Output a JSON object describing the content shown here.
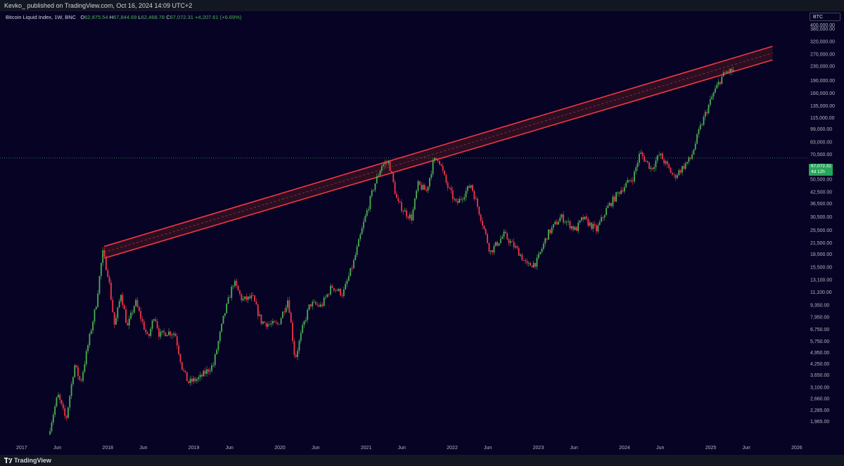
{
  "header": {
    "publisher_line": "Kevko_ published on TradingView.com, Oct 16, 2024 14:09 UTC+2"
  },
  "legend": {
    "name": "Bitcoin Liquid Index, 1W, BNC",
    "o_label": "O",
    "o": "62,875.54",
    "h_label": "H",
    "h": "67,844.69",
    "l_label": "L",
    "l": "62,468.78",
    "c_label": "C",
    "c": "67,072.31",
    "change": "+4,207.61 (+6.69%)"
  },
  "symbol": "BTC",
  "last_price": {
    "value": "67,072.31",
    "countdown": "4d 12h"
  },
  "footer": {
    "brand": "TradingView"
  },
  "colors": {
    "background": "#060325",
    "up": "#4caf50",
    "down": "#f23645",
    "channel": "#f23645",
    "channel_fill": "#3a1120",
    "axis_text": "#b2b5be"
  },
  "chart_data": {
    "type": "candlestick",
    "title": "Bitcoin Liquid Index, 1W, BNC",
    "scale": "log",
    "x_range": [
      "2016-10-01",
      "2026-02-15"
    ],
    "y_range": [
      1500,
      480000
    ],
    "y_ticks": [
      "400,000.00",
      "380,000.00",
      "320,000.00",
      "270,000.00",
      "230,000.00",
      "190,000.00",
      "160,000.00",
      "135,000.00",
      "115,000.00",
      "99,000.00",
      "83,000.00",
      "70,500.00",
      "50,500.00",
      "42,500.00",
      "36,500.00",
      "30,500.00",
      "25,500.00",
      "21,500.00",
      "18,500.00",
      "15,500.00",
      "13,100.00",
      "11,100.00",
      "9,350.00",
      "7,950.00",
      "6,750.00",
      "5,750.00",
      "4,950.00",
      "4,250.00",
      "3,650.00",
      "3,100.00",
      "2,660.00",
      "2,285.00",
      "1,965.00"
    ],
    "x_ticks": [
      "2017",
      "Jun",
      "2018",
      "Jun",
      "2019",
      "Jun",
      "2020",
      "Jun",
      "2021",
      "Jun",
      "2022",
      "Jun",
      "2023",
      "Jun",
      "2024",
      "Jun",
      "2025",
      "Jun",
      "2026"
    ],
    "price_path": [
      [
        "2017-05-01",
        1650
      ],
      [
        "2017-06-10",
        2800
      ],
      [
        "2017-07-15",
        2000
      ],
      [
        "2017-08-20",
        4200
      ],
      [
        "2017-09-15",
        3300
      ],
      [
        "2017-10-20",
        5800
      ],
      [
        "2017-11-20",
        9500
      ],
      [
        "2017-12-17",
        19000
      ],
      [
        "2018-01-10",
        14000
      ],
      [
        "2018-02-06",
        7000
      ],
      [
        "2018-03-05",
        11000
      ],
      [
        "2018-04-01",
        6900
      ],
      [
        "2018-05-05",
        9800
      ],
      [
        "2018-06-28",
        5900
      ],
      [
        "2018-07-25",
        8300
      ],
      [
        "2018-08-15",
        6200
      ],
      [
        "2018-09-15",
        6500
      ],
      [
        "2018-10-20",
        6400
      ],
      [
        "2018-11-20",
        4000
      ],
      [
        "2018-12-15",
        3300
      ],
      [
        "2019-02-01",
        3500
      ],
      [
        "2019-04-01",
        4200
      ],
      [
        "2019-05-15",
        8000
      ],
      [
        "2019-06-26",
        12800
      ],
      [
        "2019-08-01",
        10000
      ],
      [
        "2019-09-15",
        10300
      ],
      [
        "2019-10-20",
        7500
      ],
      [
        "2019-11-25",
        7200
      ],
      [
        "2020-01-01",
        7200
      ],
      [
        "2020-02-12",
        10200
      ],
      [
        "2020-03-12",
        4500
      ],
      [
        "2020-04-15",
        7000
      ],
      [
        "2020-05-15",
        9500
      ],
      [
        "2020-07-01",
        9200
      ],
      [
        "2020-08-15",
        12000
      ],
      [
        "2020-10-01",
        10800
      ],
      [
        "2020-11-15",
        16500
      ],
      [
        "2020-12-31",
        29000
      ],
      [
        "2021-02-10",
        46000
      ],
      [
        "2021-03-15",
        61000
      ],
      [
        "2021-04-14",
        63500
      ],
      [
        "2021-05-20",
        37000
      ],
      [
        "2021-06-25",
        32000
      ],
      [
        "2021-07-20",
        30000
      ],
      [
        "2021-08-15",
        47000
      ],
      [
        "2021-09-20",
        43000
      ],
      [
        "2021-10-20",
        64000
      ],
      [
        "2021-11-10",
        67500
      ],
      [
        "2021-12-15",
        47000
      ],
      [
        "2022-01-25",
        36000
      ],
      [
        "2022-03-28",
        47000
      ],
      [
        "2022-05-10",
        30000
      ],
      [
        "2022-06-18",
        19000
      ],
      [
        "2022-08-15",
        24000
      ],
      [
        "2022-10-15",
        19200
      ],
      [
        "2022-11-21",
        15800
      ],
      [
        "2022-12-31",
        16500
      ],
      [
        "2023-02-15",
        24000
      ],
      [
        "2023-04-14",
        30500
      ],
      [
        "2023-06-15",
        25500
      ],
      [
        "2023-07-15",
        30000
      ],
      [
        "2023-09-11",
        25500
      ],
      [
        "2023-10-25",
        34000
      ],
      [
        "2023-12-15",
        42500
      ],
      [
        "2024-02-15",
        52000
      ],
      [
        "2024-03-14",
        72000
      ],
      [
        "2024-05-01",
        58000
      ],
      [
        "2024-06-05",
        70500
      ],
      [
        "2024-08-05",
        52000
      ],
      [
        "2024-09-15",
        60000
      ],
      [
        "2024-10-16",
        67000
      ],
      [
        "2024-11-20",
        97000
      ],
      [
        "2024-12-20",
        125000
      ],
      [
        "2025-01-20",
        160000
      ],
      [
        "2025-02-25",
        200000
      ],
      [
        "2025-03-20",
        215000
      ],
      [
        "2025-04-10",
        215000
      ]
    ],
    "channel": {
      "upper_start": [
        "2017-12-17",
        20500
      ],
      "upper_end": [
        "2025-09-20",
        300000
      ],
      "lower_start": [
        "2017-12-17",
        17500
      ],
      "lower_end": [
        "2025-09-20",
        250000
      ]
    },
    "last_price": 67072.31
  }
}
